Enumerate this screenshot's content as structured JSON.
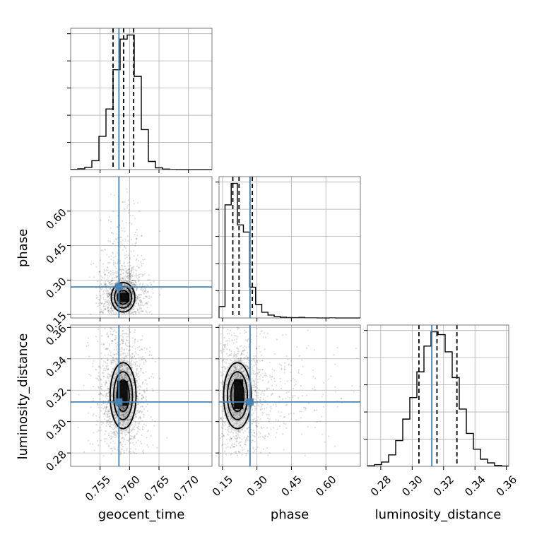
{
  "chart_data": {
    "type": "corner",
    "parameters": [
      "geocent_time",
      "phase",
      "luminosity_distance"
    ],
    "axis_labels": {
      "geocent_time": "geocent_time",
      "phase": "phase",
      "luminosity_distance": "luminosity_distance"
    },
    "ranges": {
      "geocent_time": [
        0.75,
        0.774
      ],
      "phase": [
        0.135,
        0.75
      ],
      "luminosity_distance": [
        0.2715,
        0.3615
      ]
    },
    "ticks": {
      "geocent_time": {
        "values": [
          0.755,
          0.76,
          0.765,
          0.77
        ],
        "labels": [
          "0.755",
          "0.760",
          "0.765",
          "0.770"
        ]
      },
      "phase": {
        "values": [
          0.15,
          0.3,
          0.45,
          0.6
        ],
        "labels": [
          "0.15",
          "0.30",
          "0.45",
          "0.60"
        ]
      },
      "luminosity_distance": {
        "values": [
          0.28,
          0.3,
          0.32,
          0.34,
          0.36
        ],
        "labels": [
          "0.28",
          "0.30",
          "0.32",
          "0.34",
          "0.36"
        ]
      }
    },
    "truths": {
      "geocent_time": 0.7582,
      "phase": 0.27,
      "luminosity_distance": 0.3125
    },
    "quantiles": {
      "geocent_time": [
        0.7572,
        0.759,
        0.7607
      ],
      "phase": [
        0.195,
        0.222,
        0.28
      ],
      "luminosity_distance": [
        0.3043,
        0.3158,
        0.3285
      ]
    },
    "histograms": {
      "geocent_time": {
        "edges": [
          0.75,
          0.7512,
          0.7524,
          0.7536,
          0.7548,
          0.756,
          0.7572,
          0.7584,
          0.7596,
          0.7608,
          0.762,
          0.7632,
          0.7644,
          0.7656,
          0.7668,
          0.768,
          0.7692,
          0.7704,
          0.7716,
          0.7728,
          0.774
        ],
        "counts": [
          1,
          5,
          15,
          60,
          225,
          410,
          675,
          882,
          910,
          630,
          270,
          55,
          12,
          3,
          1,
          0,
          0,
          0,
          0,
          0
        ]
      },
      "phase": {
        "edges": [
          0.135,
          0.161,
          0.188,
          0.215,
          0.241,
          0.268,
          0.294,
          0.321,
          0.348,
          0.375,
          0.401,
          0.428,
          0.455,
          0.482,
          0.508,
          0.535,
          0.562,
          0.588,
          0.615,
          0.642,
          0.668
        ],
        "counts": [
          80,
          790,
          940,
          650,
          600,
          215,
          95,
          40,
          20,
          10,
          5,
          3,
          2,
          4,
          1,
          1,
          0,
          0,
          1,
          0
        ],
        "extent_max": 0.75
      },
      "luminosity_distance": {
        "edges": [
          0.2715,
          0.276,
          0.2805,
          0.285,
          0.2895,
          0.294,
          0.2985,
          0.303,
          0.3075,
          0.312,
          0.3165,
          0.321,
          0.3255,
          0.33,
          0.3345,
          0.339,
          0.3435,
          0.348,
          0.3525,
          0.357,
          0.3615
        ],
        "counts": [
          2,
          6,
          15,
          40,
          90,
          165,
          240,
          330,
          420,
          470,
          460,
          400,
          310,
          200,
          115,
          60,
          25,
          12,
          3,
          1
        ]
      }
    },
    "joint": {
      "phase_vs_geocent_time": {
        "center": [
          0.7589,
          0.225
        ],
        "sd": [
          0.001,
          0.032
        ],
        "density_blocks": [
          {
            "x": [
              0.758,
              0.76
            ],
            "y": [
              0.205,
              0.245
            ],
            "level": 1
          }
        ],
        "scatter_extent": {
          "x": [
            0.75,
            0.774
          ],
          "y": [
            0.15,
            0.7
          ]
        }
      },
      "luminosity_distance_vs_geocent_time": {
        "center": [
          0.7589,
          0.3165
        ],
        "sd": [
          0.0011,
          0.0105
        ],
        "density_blocks": [
          {
            "x": [
              0.7579,
              0.7597
            ],
            "y": [
              0.31,
              0.326
            ],
            "level": 1
          }
        ],
        "scatter_extent": {
          "x": [
            0.75,
            0.774
          ],
          "y": [
            0.278,
            0.36
          ]
        }
      },
      "luminosity_distance_vs_phase": {
        "center": [
          0.215,
          0.3165
        ],
        "sd": [
          0.03,
          0.0105
        ],
        "density_blocks": [
          {
            "x": [
              0.2,
              0.24
            ],
            "y": [
              0.308,
              0.327
            ],
            "level": 1
          }
        ],
        "scatter_extent": {
          "x": [
            0.14,
            0.75
          ],
          "y": [
            0.278,
            0.36
          ]
        }
      }
    },
    "colors": {
      "truth": "#4682b4",
      "hist": "#000000",
      "grid": "#b0b0b0",
      "scatter": "#000000"
    },
    "grid": true,
    "legend": "none"
  }
}
